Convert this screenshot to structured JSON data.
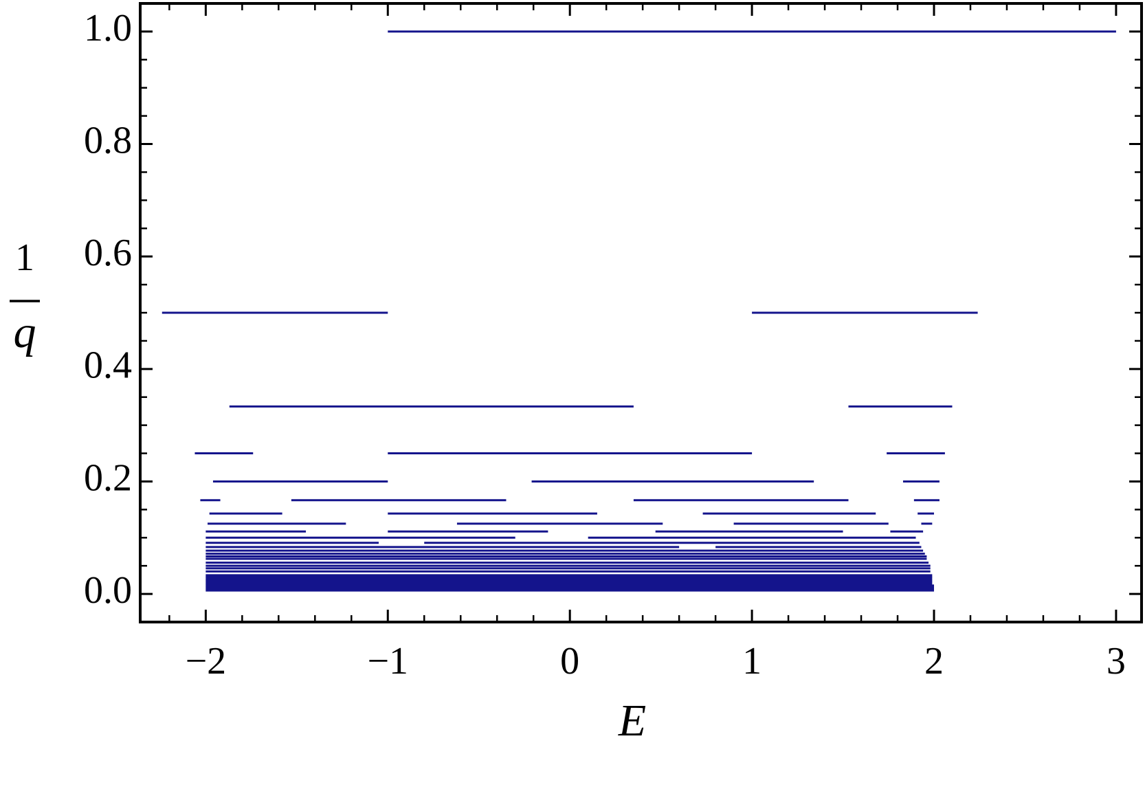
{
  "chart_data": {
    "type": "segments",
    "xlabel": "E",
    "ylabel": {
      "numerator": "1",
      "denominator": "q"
    },
    "color": "#14148c",
    "xlim": [
      -2.36,
      3.14
    ],
    "ylim": [
      -0.05,
      1.05
    ],
    "xticks": [
      {
        "value": -2,
        "label": "−2"
      },
      {
        "value": -1,
        "label": "−1"
      },
      0,
      1,
      2,
      3
    ],
    "yticks": [
      {
        "value": 0,
        "label": "0.0"
      },
      0.2,
      0.4,
      0.6,
      0.8,
      {
        "value": 1,
        "label": "1.0"
      }
    ],
    "xminorticks": [
      -2.2,
      -1.8,
      -1.6,
      -1.4,
      -1.2,
      -0.8,
      -0.6,
      -0.4,
      -0.2,
      0.2,
      0.4,
      0.6,
      0.8,
      1.2,
      1.4,
      1.6,
      1.8,
      2.2,
      2.4,
      2.6,
      2.8
    ],
    "yminorticks": [
      0.05,
      0.1,
      0.15,
      0.25,
      0.3,
      0.35,
      0.45,
      0.5,
      0.55,
      0.65,
      0.7,
      0.75,
      0.85,
      0.9,
      0.95
    ],
    "segments": [
      {
        "y": 1,
        "x": [
          -1,
          3
        ]
      },
      {
        "y": 0.5,
        "x": [
          -2.24,
          -1
        ]
      },
      {
        "y": 0.5,
        "x": [
          1,
          2.24
        ]
      },
      {
        "y": 0.3333,
        "x": [
          -1.87,
          0.35
        ]
      },
      {
        "y": 0.3333,
        "x": [
          1.53,
          2.1
        ]
      },
      {
        "y": 0.25,
        "x": [
          -2.06,
          -1.74
        ]
      },
      {
        "y": 0.25,
        "x": [
          -1,
          1
        ]
      },
      {
        "y": 0.25,
        "x": [
          1.74,
          2.06
        ]
      },
      {
        "y": 0.2,
        "x": [
          -1.96,
          -1
        ]
      },
      {
        "y": 0.2,
        "x": [
          -0.21,
          1.34
        ]
      },
      {
        "y": 0.2,
        "x": [
          1.83,
          2.03
        ]
      },
      {
        "y": 0.1667,
        "x": [
          -2.03,
          -1.92
        ]
      },
      {
        "y": 0.1667,
        "x": [
          -1.53,
          -0.35
        ]
      },
      {
        "y": 0.1667,
        "x": [
          0.35,
          1.53
        ]
      },
      {
        "y": 0.1667,
        "x": [
          1.89,
          2.03
        ]
      },
      {
        "y": 0.1429,
        "x": [
          -1.98,
          -1.58
        ]
      },
      {
        "y": 0.1429,
        "x": [
          -1,
          0.15
        ]
      },
      {
        "y": 0.1429,
        "x": [
          0.73,
          1.68
        ]
      },
      {
        "y": 0.1429,
        "x": [
          1.91,
          2
        ]
      },
      {
        "y": 0.125,
        "x": [
          -1.99,
          -1.23
        ]
      },
      {
        "y": 0.125,
        "x": [
          -0.62,
          0.51
        ]
      },
      {
        "y": 0.125,
        "x": [
          0.9,
          1.75
        ]
      },
      {
        "y": 0.125,
        "x": [
          1.93,
          1.99
        ]
      },
      {
        "y": 0.1111,
        "x": [
          -2,
          -1.45
        ]
      },
      {
        "y": 0.1111,
        "x": [
          -1,
          -0.12
        ]
      },
      {
        "y": 0.1111,
        "x": [
          0.47,
          1.5
        ]
      },
      {
        "y": 0.1111,
        "x": [
          1.76,
          1.94
        ]
      },
      {
        "y": 0.1,
        "x": [
          -2,
          -0.3
        ]
      },
      {
        "y": 0.1,
        "x": [
          0.1,
          1.9
        ]
      },
      {
        "y": 0.0909,
        "x": [
          -2,
          -1.05
        ]
      },
      {
        "y": 0.0909,
        "x": [
          -0.8,
          1.92
        ]
      },
      {
        "y": 0.0833,
        "x": [
          -2,
          0.6
        ]
      },
      {
        "y": 0.0833,
        "x": [
          0.8,
          1.93
        ]
      },
      {
        "y": 0.0769,
        "x": [
          -2,
          1.94
        ]
      },
      {
        "y": 0.0714,
        "x": [
          -2,
          1.95
        ]
      },
      {
        "y": 0.0667,
        "x": [
          -2,
          1.96
        ]
      },
      {
        "y": 0.0625,
        "x": [
          -2,
          1.96
        ]
      },
      {
        "y": 0.0556,
        "x": [
          -2,
          1.97
        ]
      },
      {
        "y": 0.05,
        "x": [
          -2,
          1.98
        ]
      },
      {
        "y": 0.0455,
        "x": [
          -2,
          1.98
        ]
      },
      {
        "y": 0.04,
        "x": [
          -2,
          1.98
        ]
      },
      {
        "y": 0.0333,
        "x": [
          -2,
          1.99
        ]
      },
      {
        "y": 0.03,
        "x": [
          -2,
          1.99
        ]
      },
      {
        "y": 0.027,
        "x": [
          -2,
          1.99
        ]
      },
      {
        "y": 0.024,
        "x": [
          -2,
          1.99
        ]
      },
      {
        "y": 0.021,
        "x": [
          -2,
          1.99
        ]
      },
      {
        "y": 0.018,
        "x": [
          -2,
          1.99
        ]
      },
      {
        "y": 0.015,
        "x": [
          -2,
          2
        ]
      },
      {
        "y": 0.012,
        "x": [
          -2,
          2
        ]
      },
      {
        "y": 0.009,
        "x": [
          -2,
          2
        ]
      },
      {
        "y": 0.006,
        "x": [
          -2,
          2
        ]
      }
    ]
  }
}
